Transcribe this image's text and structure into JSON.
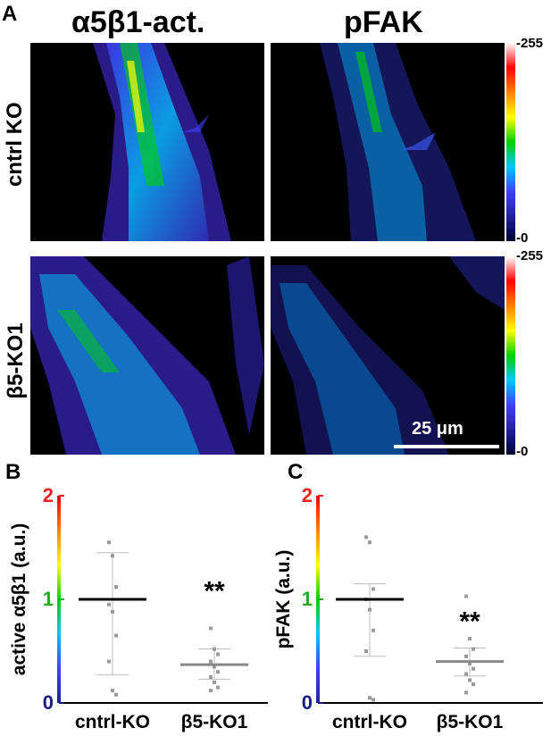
{
  "panel_labels": {
    "a": "A",
    "b": "B",
    "c": "C"
  },
  "column_titles": [
    "α5β1-act.",
    "pFAK"
  ],
  "row_labels": [
    "cntrl KO",
    "β5-KO1"
  ],
  "colorbar": {
    "max_label": "-255",
    "min_label": "-0",
    "colors": [
      "#000033",
      "#2020a0",
      "#4040ff",
      "#00c8ff",
      "#00d200",
      "#ffff00",
      "#ff8000",
      "#ff0000",
      "#ffffff"
    ]
  },
  "scale_bar": {
    "label": "25 μm"
  },
  "chart_data": [
    {
      "type": "scatter",
      "panel": "B",
      "ylabel": "active α5β1 (a.u.)",
      "categories": [
        "cntrl-KO",
        "β5-KO1"
      ],
      "ylim": [
        0,
        2
      ],
      "yticks": [
        "0",
        "1",
        "2"
      ],
      "tick_colors": [
        "#1a1a80",
        "#22aa22",
        "#ee2222"
      ],
      "series": [
        {
          "category": "cntrl-KO",
          "mean": 1.0,
          "sd_low": 0.27,
          "sd_high": 1.45,
          "points": [
            1.55,
            1.42,
            1.12,
            0.95,
            0.88,
            0.65,
            0.4,
            0.12,
            0.08
          ]
        },
        {
          "category": "β5-KO1",
          "mean": 0.37,
          "sd_low": 0.23,
          "sd_high": 0.52,
          "points": [
            0.72,
            0.52,
            0.47,
            0.4,
            0.35,
            0.3,
            0.25,
            0.2,
            0.15,
            0.12
          ]
        }
      ],
      "annotation": "**"
    },
    {
      "type": "scatter",
      "panel": "C",
      "ylabel": "pFAK (a.u.)",
      "categories": [
        "cntrl-KO",
        "β5-KO1"
      ],
      "ylim": [
        0,
        2
      ],
      "yticks": [
        "0",
        "1",
        "2"
      ],
      "tick_colors": [
        "#1a1a80",
        "#22aa22",
        "#ee2222"
      ],
      "series": [
        {
          "category": "cntrl-KO",
          "mean": 1.0,
          "sd_low": 0.45,
          "sd_high": 1.15,
          "points": [
            1.6,
            1.55,
            1.1,
            1.0,
            0.9,
            0.7,
            0.5,
            0.05,
            0.03
          ]
        },
        {
          "category": "β5-KO1",
          "mean": 0.4,
          "sd_low": 0.26,
          "sd_high": 0.53,
          "points": [
            1.03,
            0.62,
            0.52,
            0.45,
            0.38,
            0.33,
            0.28,
            0.22,
            0.18,
            0.1
          ]
        }
      ],
      "annotation": "**"
    }
  ]
}
